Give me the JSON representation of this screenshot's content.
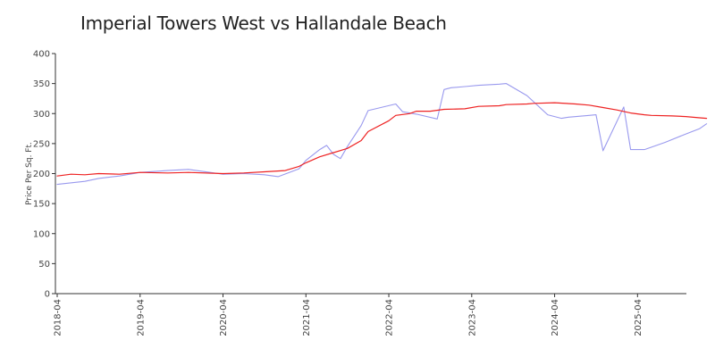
{
  "chart_data": {
    "type": "line",
    "title": "Imperial Towers West vs Hallandale Beach",
    "xlabel": "",
    "ylabel": "Price Per Sq. Ft.",
    "ylim": [
      0,
      400
    ],
    "yticks": [
      0,
      50,
      100,
      150,
      200,
      250,
      300,
      350,
      400
    ],
    "xlim": [
      "2018-04",
      "2025-12"
    ],
    "xticks": [
      "2018-04",
      "2019-04",
      "2020-04",
      "2021-04",
      "2022-04",
      "2023-04",
      "2024-04",
      "2025-04"
    ],
    "grid": false,
    "legend": "none",
    "series": [
      {
        "color": "#9999ee",
        "points": [
          [
            "2018-04",
            182
          ],
          [
            "2018-08",
            187
          ],
          [
            "2018-10",
            192
          ],
          [
            "2019-01",
            196
          ],
          [
            "2019-04",
            202
          ],
          [
            "2019-08",
            205
          ],
          [
            "2019-11",
            207
          ],
          [
            "2020-04",
            199
          ],
          [
            "2020-07",
            200
          ],
          [
            "2020-10",
            198
          ],
          [
            "2020-12",
            195
          ],
          [
            "2021-03",
            208
          ],
          [
            "2021-04",
            222
          ],
          [
            "2021-06",
            240
          ],
          [
            "2021-07",
            247
          ],
          [
            "2021-08",
            232
          ],
          [
            "2021-09",
            225
          ],
          [
            "2021-10",
            245
          ],
          [
            "2021-12",
            280
          ],
          [
            "2022-01",
            305
          ],
          [
            "2022-05",
            316
          ],
          [
            "2022-06",
            303
          ],
          [
            "2022-08",
            299
          ],
          [
            "2022-11",
            291
          ],
          [
            "2022-12",
            340
          ],
          [
            "2023-01",
            343
          ],
          [
            "2023-03",
            345
          ],
          [
            "2023-05",
            347
          ],
          [
            "2023-08",
            349
          ],
          [
            "2023-09",
            350
          ],
          [
            "2023-12",
            330
          ],
          [
            "2024-03",
            298
          ],
          [
            "2024-05",
            292
          ],
          [
            "2024-06",
            294
          ],
          [
            "2024-09",
            297
          ],
          [
            "2024-10",
            298
          ],
          [
            "2024-11",
            238
          ],
          [
            "2025-02",
            311
          ],
          [
            "2025-03",
            240
          ],
          [
            "2025-05",
            240
          ],
          [
            "2025-08",
            252
          ],
          [
            "2025-11",
            266
          ],
          [
            "2026-01",
            275
          ],
          [
            "2026-02",
            283
          ]
        ]
      },
      {
        "color": "#ee2222",
        "points": [
          [
            "2018-04",
            196
          ],
          [
            "2018-06",
            199
          ],
          [
            "2018-08",
            198
          ],
          [
            "2018-10",
            200
          ],
          [
            "2019-01",
            199
          ],
          [
            "2019-04",
            202
          ],
          [
            "2019-08",
            201
          ],
          [
            "2019-11",
            202
          ],
          [
            "2020-04",
            200
          ],
          [
            "2020-07",
            201
          ],
          [
            "2020-10",
            203
          ],
          [
            "2021-01",
            205
          ],
          [
            "2021-03",
            212
          ],
          [
            "2021-04",
            218
          ],
          [
            "2021-06",
            228
          ],
          [
            "2021-08",
            235
          ],
          [
            "2021-10",
            242
          ],
          [
            "2021-12",
            255
          ],
          [
            "2022-01",
            270
          ],
          [
            "2022-04",
            288
          ],
          [
            "2022-05",
            297
          ],
          [
            "2022-07",
            300
          ],
          [
            "2022-08",
            304
          ],
          [
            "2022-10",
            304
          ],
          [
            "2022-12",
            307
          ],
          [
            "2023-03",
            308
          ],
          [
            "2023-05",
            312
          ],
          [
            "2023-08",
            313
          ],
          [
            "2023-09",
            315
          ],
          [
            "2023-12",
            316
          ],
          [
            "2024-01",
            317
          ],
          [
            "2024-04",
            318
          ],
          [
            "2024-07",
            316
          ],
          [
            "2024-09",
            314
          ],
          [
            "2024-11",
            310
          ],
          [
            "2025-01",
            306
          ],
          [
            "2025-03",
            301
          ],
          [
            "2025-05",
            298
          ],
          [
            "2025-06",
            297
          ],
          [
            "2025-09",
            296
          ],
          [
            "2025-11",
            295
          ],
          [
            "2026-01",
            293
          ],
          [
            "2026-02",
            292
          ]
        ]
      }
    ]
  }
}
